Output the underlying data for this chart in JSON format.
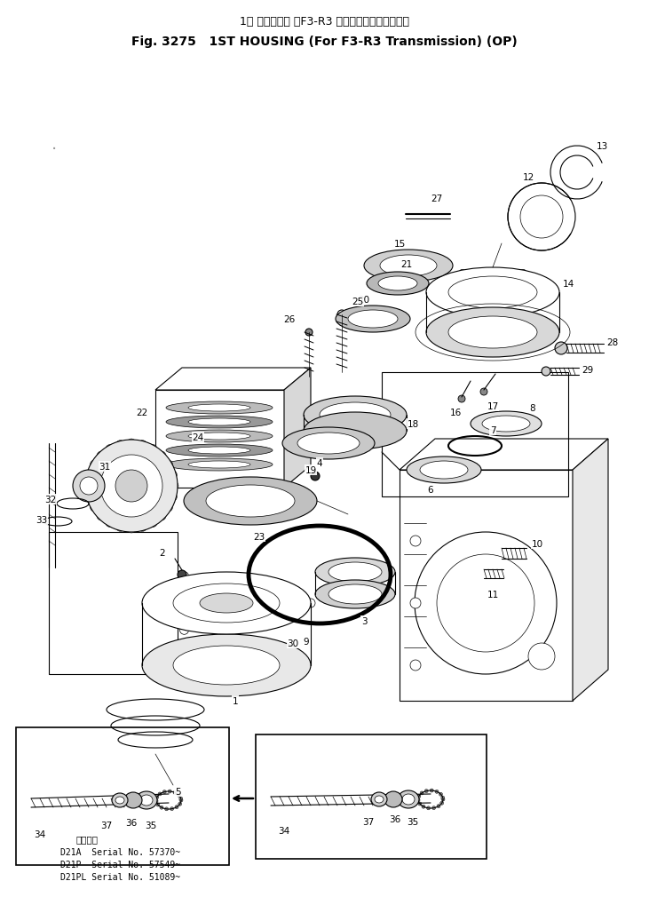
{
  "bg_color": "#ffffff",
  "text_color": "#000000",
  "title_jp": "1速 ハウジング （F3-R3 トランスミッション用）",
  "title_en": "Fig. 3275   1ST HOUSING （For F3-R3 Transmission）(OP)",
  "serial_header": "適用号機",
  "serial_lines": [
    "D21A  Serial No. 57370~",
    "D21P  Serial No. 57549~",
    "D21PL Serial No. 51089~"
  ],
  "lw": 0.8,
  "lw_thick": 1.5,
  "lw_thin": 0.5
}
